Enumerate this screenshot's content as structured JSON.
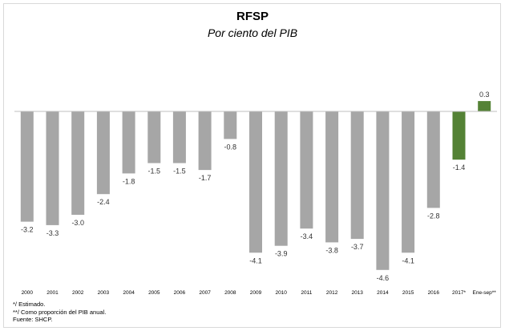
{
  "chart_data": {
    "type": "bar",
    "title": "RFSP",
    "subtitle": "Por ciento del PIB",
    "categories": [
      "2000",
      "2001",
      "2002",
      "2003",
      "2004",
      "2005",
      "2006",
      "2007",
      "2008",
      "2009",
      "2010",
      "2011",
      "2012",
      "2013",
      "2014",
      "2015",
      "2016",
      "2017*",
      "Ene-sep**"
    ],
    "values": [
      -3.2,
      -3.3,
      -3.0,
      -2.4,
      -1.8,
      -1.5,
      -1.5,
      -1.7,
      -0.8,
      -4.1,
      -3.9,
      -3.4,
      -3.8,
      -3.7,
      -4.6,
      -4.1,
      -2.8,
      -1.4,
      0.3
    ],
    "data_labels": [
      "-3.2",
      "-3.3",
      "-3.0",
      "-2.4",
      "-1.8",
      "-1.5",
      "-1.5",
      "-1.7",
      "-0.8",
      "-4.1",
      "-3.9",
      "-3.4",
      "-3.8",
      "-3.7",
      "-4.6",
      "-4.1",
      "-2.8",
      "-1.4",
      "0.3"
    ],
    "bar_colors": [
      "#a6a6a6",
      "#a6a6a6",
      "#a6a6a6",
      "#a6a6a6",
      "#a6a6a6",
      "#a6a6a6",
      "#a6a6a6",
      "#a6a6a6",
      "#a6a6a6",
      "#a6a6a6",
      "#a6a6a6",
      "#a6a6a6",
      "#a6a6a6",
      "#a6a6a6",
      "#a6a6a6",
      "#a6a6a6",
      "#a6a6a6",
      "#548235",
      "#548235"
    ],
    "ylim": [
      -4.8,
      0.6
    ],
    "grid": false,
    "axis_color": "#bfbfbf",
    "xlabel": "",
    "ylabel": ""
  },
  "notes": {
    "estimated": "*/ Estimado.",
    "proportion": "**/ Como proporción del PIB anual.",
    "source": "Fuente: SHCP."
  }
}
